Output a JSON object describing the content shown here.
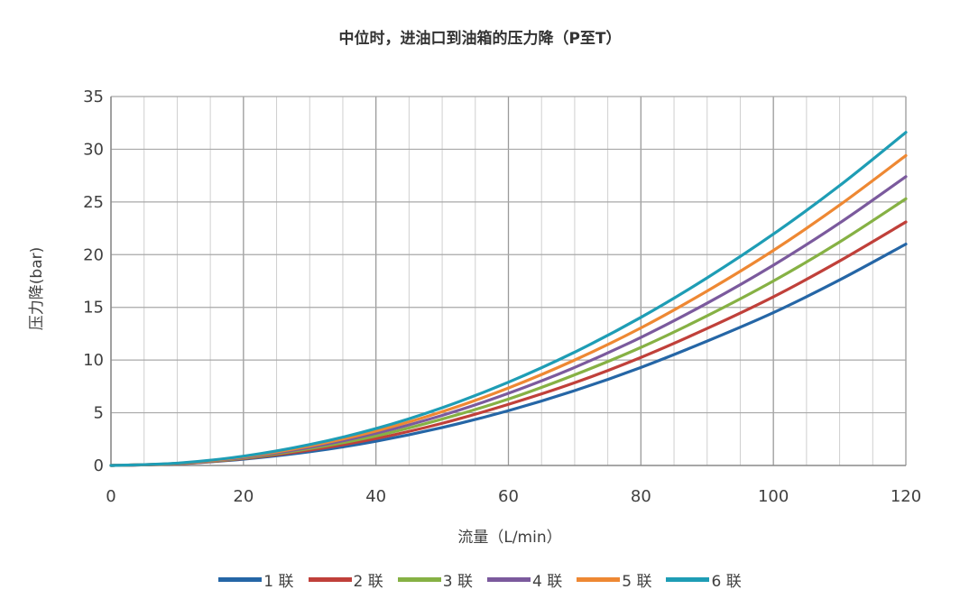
{
  "chart_data": {
    "type": "line",
    "title": "中位时，进油口到油箱的压力降（P至T）",
    "xlabel": "流量（L/min）",
    "ylabel": "压力降(bar)",
    "xlim": [
      0,
      120
    ],
    "ylim": [
      0,
      35
    ],
    "xticks": [
      0,
      20,
      40,
      60,
      80,
      100,
      120
    ],
    "yticks": [
      0,
      5,
      10,
      15,
      20,
      25,
      30,
      35
    ],
    "grid": true,
    "legend_position": "bottom",
    "x": [
      0,
      10,
      20,
      30,
      40,
      50,
      60,
      70,
      80,
      90,
      100,
      110,
      120
    ],
    "series": [
      {
        "name": "1 联",
        "color": "#2566A6",
        "values": [
          0,
          0.15,
          0.6,
          1.3,
          2.3,
          3.6,
          5.2,
          7.1,
          9.3,
          11.8,
          14.5,
          17.6,
          21.0
        ]
      },
      {
        "name": "2 联",
        "color": "#C0403A",
        "values": [
          0,
          0.16,
          0.65,
          1.45,
          2.55,
          4.0,
          5.8,
          7.85,
          10.25,
          13.0,
          16.0,
          19.4,
          23.1
        ]
      },
      {
        "name": "3 联",
        "color": "#86B144",
        "values": [
          0,
          0.18,
          0.7,
          1.6,
          2.8,
          4.4,
          6.3,
          8.6,
          11.2,
          14.2,
          17.5,
          21.2,
          25.3
        ]
      },
      {
        "name": "4 联",
        "color": "#7B5A9D",
        "values": [
          0,
          0.19,
          0.76,
          1.72,
          3.05,
          4.75,
          6.85,
          9.3,
          12.15,
          15.4,
          19.0,
          23.0,
          27.4
        ]
      },
      {
        "name": "5 联",
        "color": "#EE8833",
        "values": [
          0,
          0.2,
          0.82,
          1.85,
          3.27,
          5.1,
          7.35,
          10.0,
          13.05,
          16.55,
          20.4,
          24.7,
          29.4
        ]
      },
      {
        "name": "6 联",
        "color": "#1E9DB5",
        "values": [
          0,
          0.22,
          0.88,
          1.98,
          3.5,
          5.48,
          7.9,
          10.75,
          14.05,
          17.8,
          21.95,
          26.55,
          31.6
        ]
      }
    ]
  }
}
